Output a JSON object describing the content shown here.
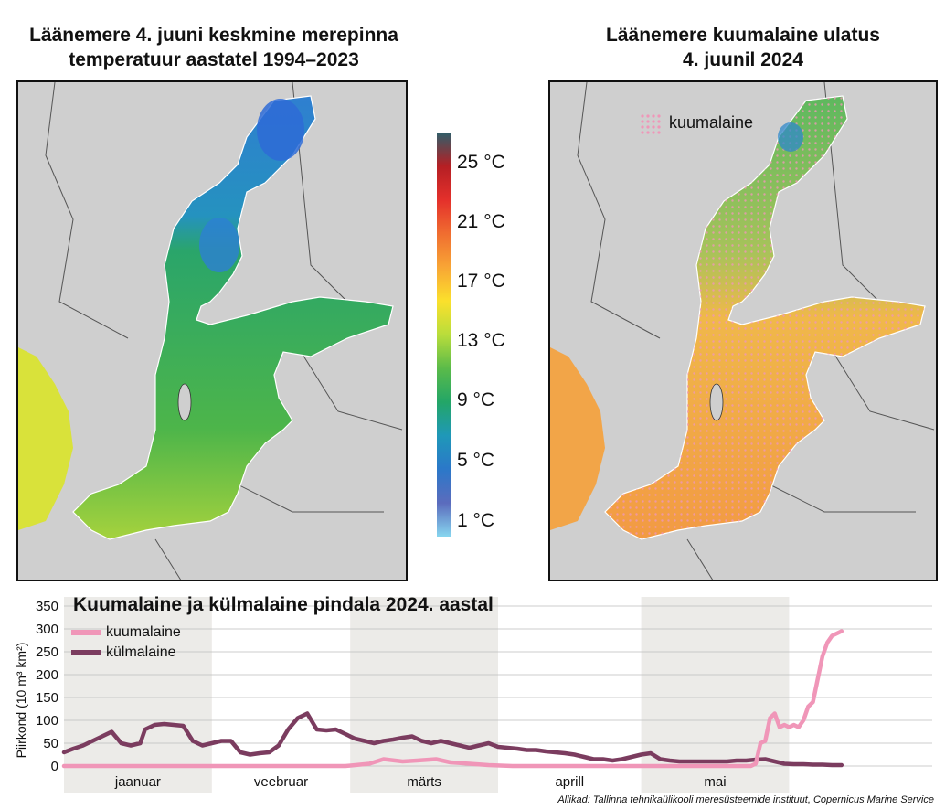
{
  "left_map": {
    "title_line1": "Läänemere 4. juuni keskmine merepinna",
    "title_line2": "temperatuur aastatel 1994–2023"
  },
  "right_map": {
    "title_line1": "Läänemere kuumalaine ulatus",
    "title_line2": "4. juunil 2024",
    "legend_label": "kuumalaine",
    "legend_color": "#f096b8"
  },
  "colorbar": {
    "labels": [
      "25 °C",
      "21 °C",
      "17 °C",
      "13 °C",
      "9 °C",
      "5 °C",
      "1 °C"
    ],
    "colors": [
      "#2f5f6a",
      "#b51f24",
      "#e4302b",
      "#f06d30",
      "#f8a535",
      "#fbe02c",
      "#b9dd3b",
      "#5bbb49",
      "#23a667",
      "#1f98b8",
      "#2b78c9",
      "#5b6cbd",
      "#87d6ef"
    ]
  },
  "chart_data": {
    "type": "line",
    "title": "Kuumalaine ja külmalaine pindala 2024. aastal",
    "ylabel": "Piirkond (10 m³ km²)",
    "ylim": [
      0,
      350
    ],
    "yticks": [
      0,
      50,
      100,
      150,
      200,
      250,
      300,
      350
    ],
    "month_labels": [
      "jaanuar",
      "veebruar",
      "märts",
      "aprill",
      "mai"
    ],
    "grid": true,
    "legend_position": "top-left",
    "source": "Allikad: Tallinna tehnikaülikooli meresüsteemide instituut, Copernicus Marine Service",
    "series": [
      {
        "name": "kuumalaine",
        "color": "#f096b8",
        "x": [
          1,
          10,
          20,
          31,
          40,
          50,
          60,
          65,
          68,
          72,
          75,
          79,
          82,
          86,
          90,
          95,
          100,
          110,
          120,
          130,
          140,
          145,
          146,
          147,
          148,
          149,
          150,
          151,
          152,
          153,
          154,
          155,
          156,
          157,
          158,
          159,
          160,
          161,
          162,
          163,
          164
        ],
        "values": [
          0,
          0,
          0,
          0,
          0,
          0,
          0,
          5,
          15,
          10,
          12,
          15,
          8,
          5,
          2,
          0,
          0,
          0,
          0,
          0,
          0,
          0,
          5,
          50,
          55,
          105,
          115,
          85,
          90,
          85,
          90,
          85,
          100,
          130,
          140,
          190,
          240,
          270,
          285,
          290,
          295
        ]
      },
      {
        "name": "külmalaine",
        "color": "#7b3c5f",
        "x": [
          1,
          3,
          5,
          7,
          9,
          11,
          13,
          15,
          17,
          18,
          20,
          22,
          24,
          26,
          28,
          30,
          32,
          34,
          36,
          38,
          40,
          42,
          44,
          46,
          48,
          50,
          52,
          54,
          56,
          58,
          60,
          62,
          64,
          66,
          68,
          70,
          72,
          74,
          76,
          78,
          80,
          82,
          84,
          86,
          88,
          90,
          92,
          94,
          96,
          98,
          100,
          102,
          104,
          106,
          108,
          110,
          112,
          114,
          116,
          118,
          120,
          122,
          124,
          126,
          128,
          130,
          132,
          134,
          136,
          138,
          140,
          142,
          144,
          146,
          148,
          150,
          152,
          154,
          156,
          158,
          160,
          162,
          164
        ],
        "values": [
          30,
          38,
          45,
          55,
          65,
          75,
          50,
          45,
          50,
          80,
          90,
          92,
          90,
          88,
          55,
          45,
          50,
          55,
          55,
          30,
          25,
          28,
          30,
          45,
          80,
          105,
          115,
          80,
          78,
          80,
          70,
          60,
          55,
          50,
          55,
          58,
          62,
          65,
          55,
          50,
          55,
          50,
          45,
          40,
          45,
          50,
          42,
          40,
          38,
          35,
          35,
          32,
          30,
          28,
          25,
          20,
          15,
          15,
          12,
          15,
          20,
          25,
          28,
          15,
          12,
          10,
          10,
          10,
          10,
          10,
          10,
          12,
          12,
          14,
          15,
          10,
          5,
          4,
          4,
          3,
          3,
          2,
          2
        ]
      }
    ]
  }
}
